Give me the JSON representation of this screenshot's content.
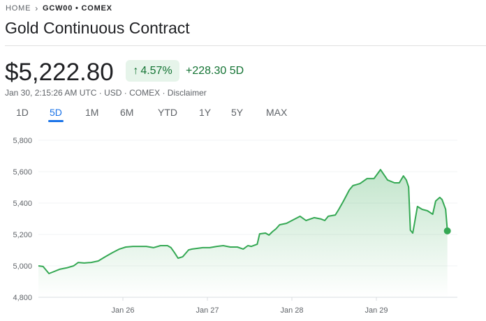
{
  "breadcrumb": {
    "home": "HOME",
    "current": "GCW00 • COMEX"
  },
  "title": "Gold Continuous Contract",
  "quote": {
    "price": "$5,222.80",
    "percent_change": "4.57%",
    "direction_icon": "arrow-up-icon",
    "abs_change": "+228.30 5D"
  },
  "meta": {
    "timestamp": "Jan 30, 2:15:26 AM UTC",
    "currency": "USD",
    "exchange": "COMEX",
    "disclaimer": "Disclaimer",
    "separator": " · "
  },
  "range_tabs": [
    {
      "label": "1D"
    },
    {
      "label": "5D",
      "active": true
    },
    {
      "label": "1M"
    },
    {
      "label": "6M"
    },
    {
      "label": "YTD"
    },
    {
      "label": "1Y"
    },
    {
      "label": "5Y"
    },
    {
      "label": "MAX"
    }
  ],
  "colors": {
    "up": "#137333",
    "line": "#34a853",
    "accent": "#1a73e8"
  },
  "chart_data": {
    "type": "area",
    "ylim": [
      4800,
      5800
    ],
    "yticks": [
      4800,
      5000,
      5200,
      5400,
      5600,
      5800
    ],
    "ytick_labels": [
      "4,800",
      "5,000",
      "5,200",
      "5,400",
      "5,600",
      "5,800"
    ],
    "xlim": [
      "Jan 25 00:00",
      "Jan 29 23:00"
    ],
    "xticks": [
      "Jan 26 00:00",
      "Jan 27 00:00",
      "Jan 28 00:00",
      "Jan 29 00:00"
    ],
    "xtick_labels": [
      "Jan 26",
      "Jan 27",
      "Jan 28",
      "Jan 29"
    ],
    "grid": "horizontal",
    "x": [
      "Jan 25 00:00",
      "Jan 25 01:20",
      "Jan 25 03:00",
      "Jan 25 04:00",
      "Jan 25 06:00",
      "Jan 25 08:00",
      "Jan 25 10:00",
      "Jan 25 11:20",
      "Jan 25 13:00",
      "Jan 25 15:00",
      "Jan 25 17:00",
      "Jan 25 19:00",
      "Jan 25 21:00",
      "Jan 25 23:00",
      "Jan 26 00:50",
      "Jan 26 02:50",
      "Jan 26 04:50",
      "Jan 26 06:40",
      "Jan 26 08:40",
      "Jan 26 10:40",
      "Jan 26 12:40",
      "Jan 26 13:40",
      "Jan 26 14:40",
      "Jan 26 15:40",
      "Jan 26 17:00",
      "Jan 26 18:40",
      "Jan 26 19:40",
      "Jan 26 21:00",
      "Jan 26 22:40",
      "Jan 27 00:40",
      "Jan 27 02:40",
      "Jan 27 04:30",
      "Jan 27 06:30",
      "Jan 27 08:30",
      "Jan 27 10:10",
      "Jan 27 11:30",
      "Jan 27 12:30",
      "Jan 27 14:10",
      "Jan 27 14:50",
      "Jan 27 16:30",
      "Jan 27 17:30",
      "Jan 27 18:30",
      "Jan 27 19:30",
      "Jan 27 20:30",
      "Jan 27 22:30",
      "Jan 28 00:20",
      "Jan 28 02:20",
      "Jan 28 04:00",
      "Jan 28 06:20",
      "Jan 28 08:20",
      "Jan 28 09:20",
      "Jan 28 10:20",
      "Jan 28 12:20",
      "Jan 28 13:20",
      "Jan 28 14:40",
      "Jan 28 16:20",
      "Jan 28 17:20",
      "Jan 28 19:20",
      "Jan 28 21:20",
      "Jan 28 23:20",
      "Jan 29 01:10",
      "Jan 29 03:10",
      "Jan 29 05:10",
      "Jan 29 06:30",
      "Jan 29 07:40",
      "Jan 29 08:30",
      "Jan 29 09:10",
      "Jan 29 09:40",
      "Jan 29 10:20",
      "Jan 29 10:50",
      "Jan 29 11:40",
      "Jan 29 13:00",
      "Jan 29 14:30",
      "Jan 29 16:00",
      "Jan 29 16:50",
      "Jan 29 18:00",
      "Jan 29 18:40",
      "Jan 29 19:40",
      "Jan 29 20:10"
    ],
    "values": [
      5000,
      4996,
      4951,
      4960,
      4978,
      4987,
      5000,
      5022,
      5018,
      5022,
      5031,
      5058,
      5084,
      5107,
      5120,
      5124,
      5124,
      5124,
      5116,
      5129,
      5129,
      5116,
      5084,
      5049,
      5058,
      5102,
      5107,
      5111,
      5116,
      5116,
      5124,
      5129,
      5120,
      5120,
      5107,
      5129,
      5124,
      5138,
      5204,
      5209,
      5196,
      5218,
      5236,
      5262,
      5271,
      5293,
      5316,
      5289,
      5307,
      5298,
      5289,
      5316,
      5324,
      5360,
      5413,
      5484,
      5511,
      5524,
      5556,
      5556,
      5613,
      5547,
      5529,
      5529,
      5573,
      5547,
      5502,
      5227,
      5209,
      5271,
      5378,
      5360,
      5351,
      5329,
      5413,
      5436,
      5422,
      5360,
      5222.8
    ]
  }
}
